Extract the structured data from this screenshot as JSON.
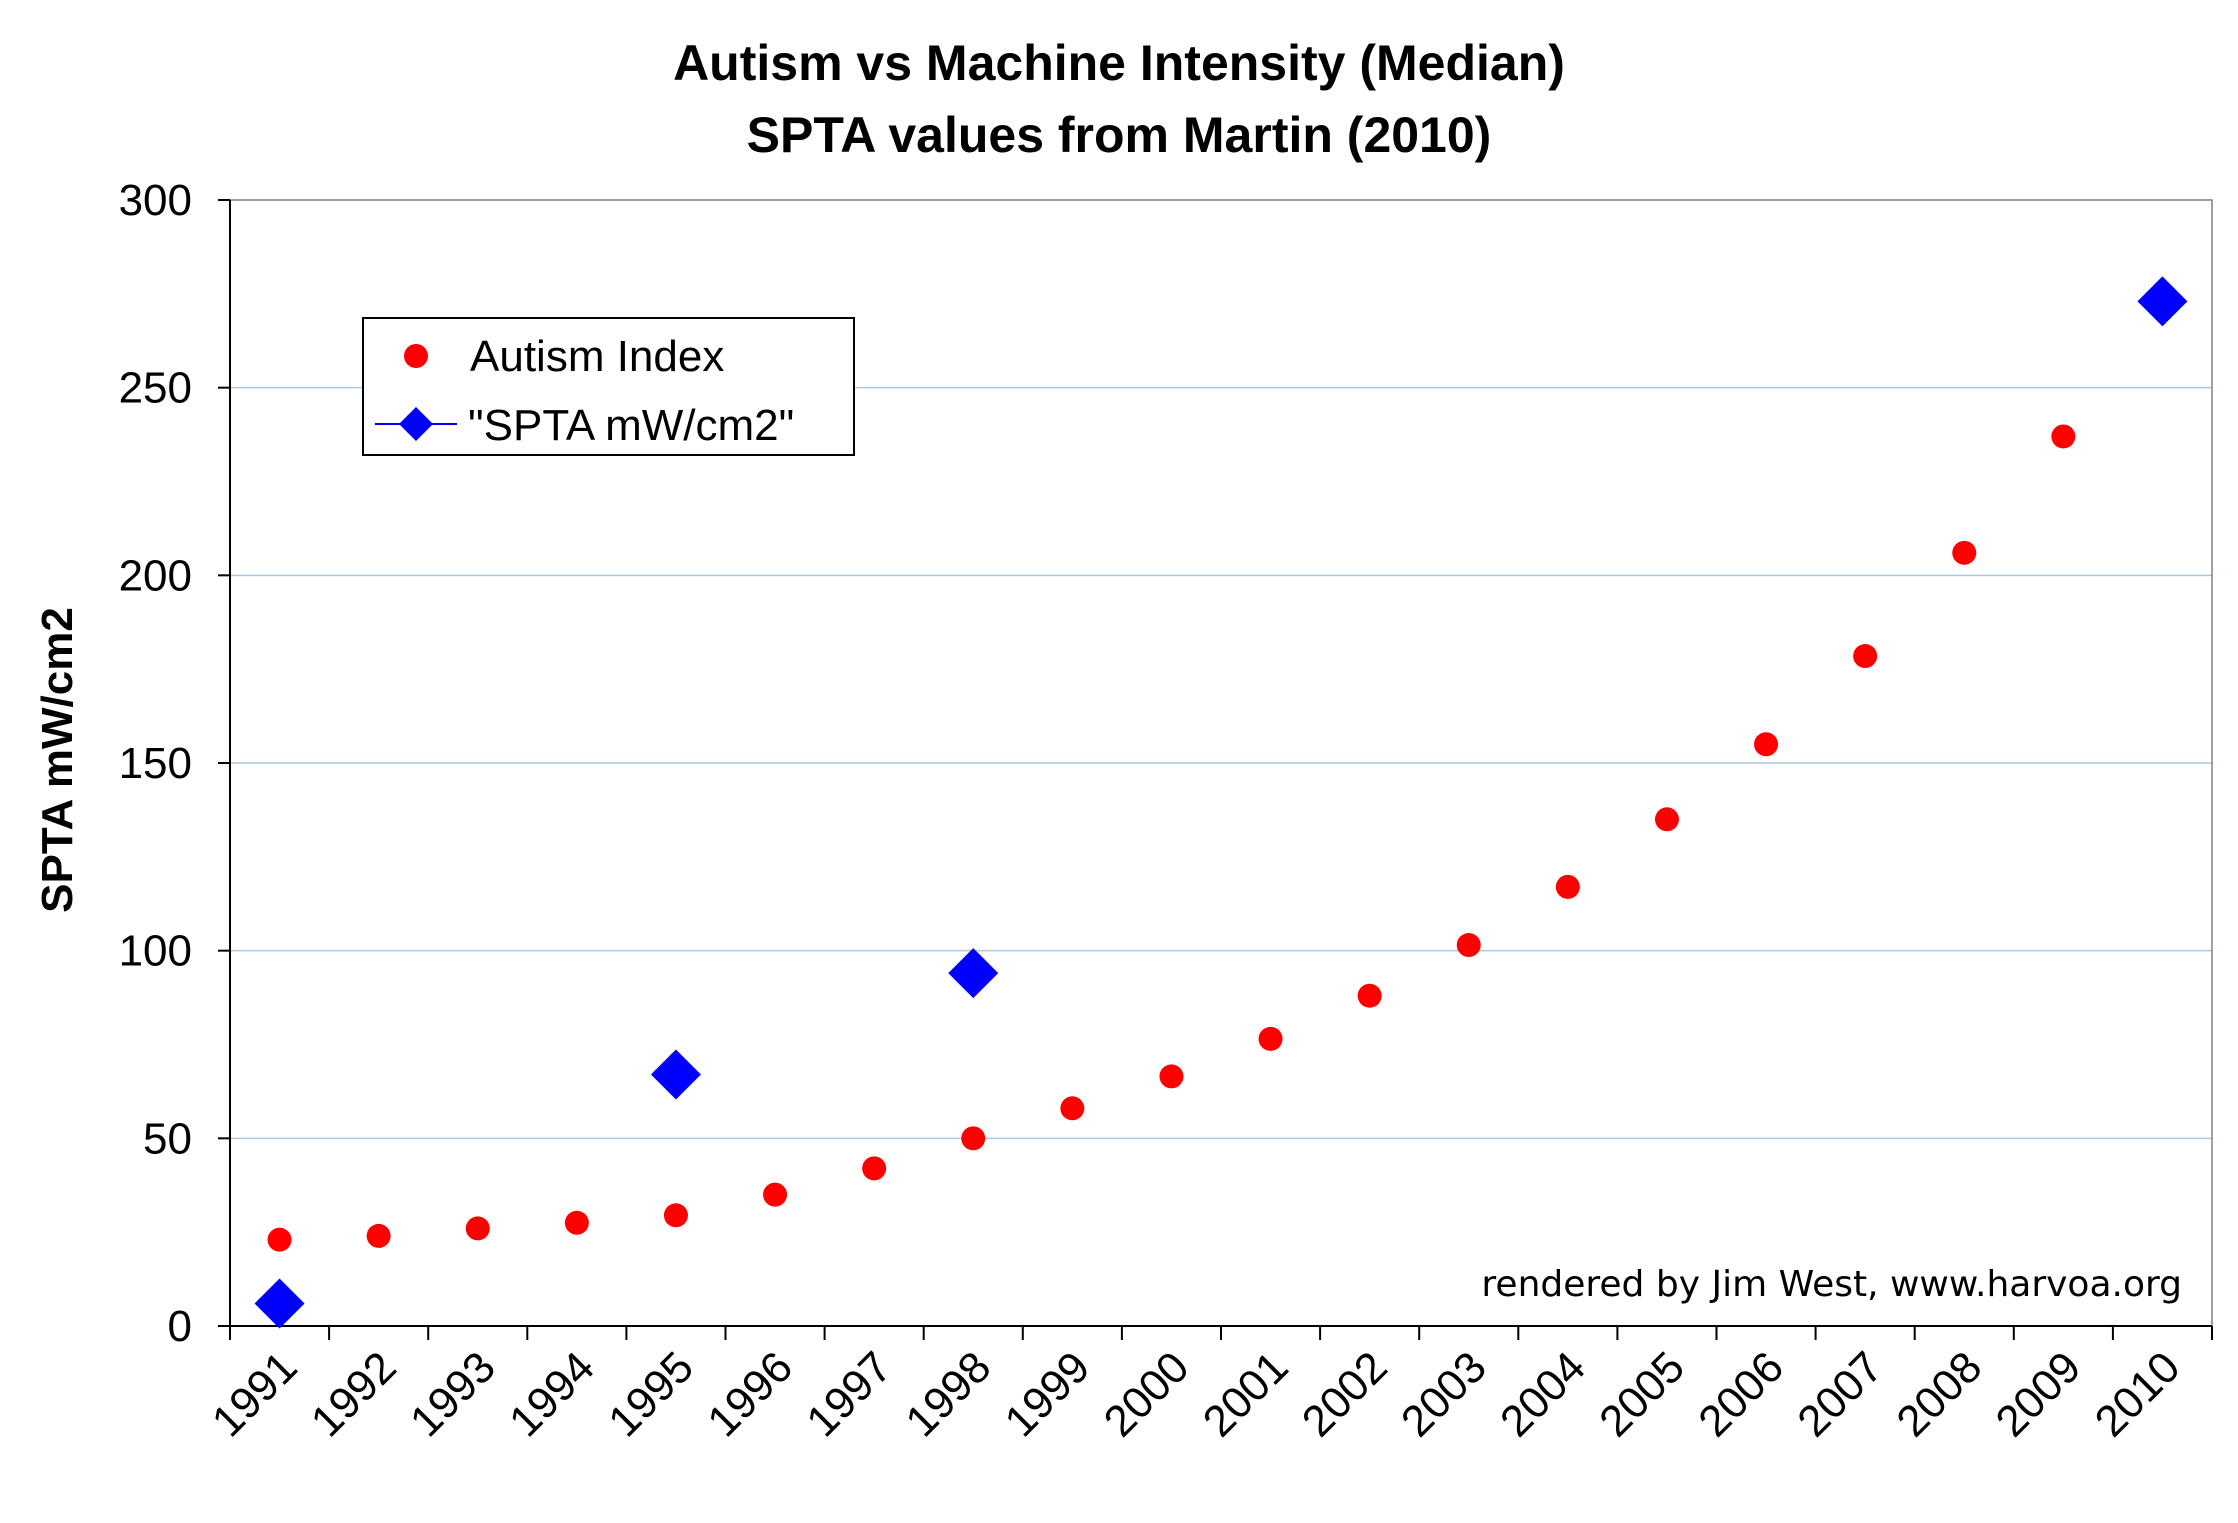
{
  "chart_data": {
    "type": "scatter",
    "title": "Autism vs Machine Intensity (Median)",
    "subtitle": "SPTA values from Martin (2010)",
    "xlabel": "",
    "ylabel": "SPTA mW/cm2",
    "categories": [
      "1991",
      "1992",
      "1993",
      "1994",
      "1995",
      "1996",
      "1997",
      "1998",
      "1999",
      "2000",
      "2001",
      "2002",
      "2003",
      "2004",
      "2005",
      "2006",
      "2007",
      "2008",
      "2009",
      "2010"
    ],
    "yticks": [
      "0",
      "50",
      "100",
      "150",
      "200",
      "250",
      "300"
    ],
    "ylim": [
      0,
      300
    ],
    "grid": true,
    "legend_position": "upper-left",
    "series": [
      {
        "name": "Autism Index",
        "marker": "circle",
        "color": "#ff0000",
        "points": [
          {
            "x": "1991",
            "y": 23
          },
          {
            "x": "1992",
            "y": 24
          },
          {
            "x": "1993",
            "y": 26
          },
          {
            "x": "1994",
            "y": 27.5
          },
          {
            "x": "1995",
            "y": 29.5
          },
          {
            "x": "1996",
            "y": 35
          },
          {
            "x": "1997",
            "y": 42
          },
          {
            "x": "1998",
            "y": 50
          },
          {
            "x": "1999",
            "y": 58
          },
          {
            "x": "2000",
            "y": 66.5
          },
          {
            "x": "2001",
            "y": 76.5
          },
          {
            "x": "2002",
            "y": 88
          },
          {
            "x": "2003",
            "y": 101.5
          },
          {
            "x": "2004",
            "y": 117
          },
          {
            "x": "2005",
            "y": 135
          },
          {
            "x": "2006",
            "y": 155
          },
          {
            "x": "2007",
            "y": 178.5
          },
          {
            "x": "2008",
            "y": 206
          },
          {
            "x": "2009",
            "y": 237
          },
          {
            "x": "2010",
            "y": null
          }
        ]
      },
      {
        "name": "\"SPTA mW/cm2\"",
        "marker": "diamond",
        "color": "#0000ff",
        "points": [
          {
            "x": "1991",
            "y": 6
          },
          {
            "x": "1995",
            "y": 67
          },
          {
            "x": "1998",
            "y": 94
          },
          {
            "x": "2010",
            "y": 273
          }
        ]
      }
    ],
    "annotation": "rendered by Jim West, www.harvoa.org"
  }
}
